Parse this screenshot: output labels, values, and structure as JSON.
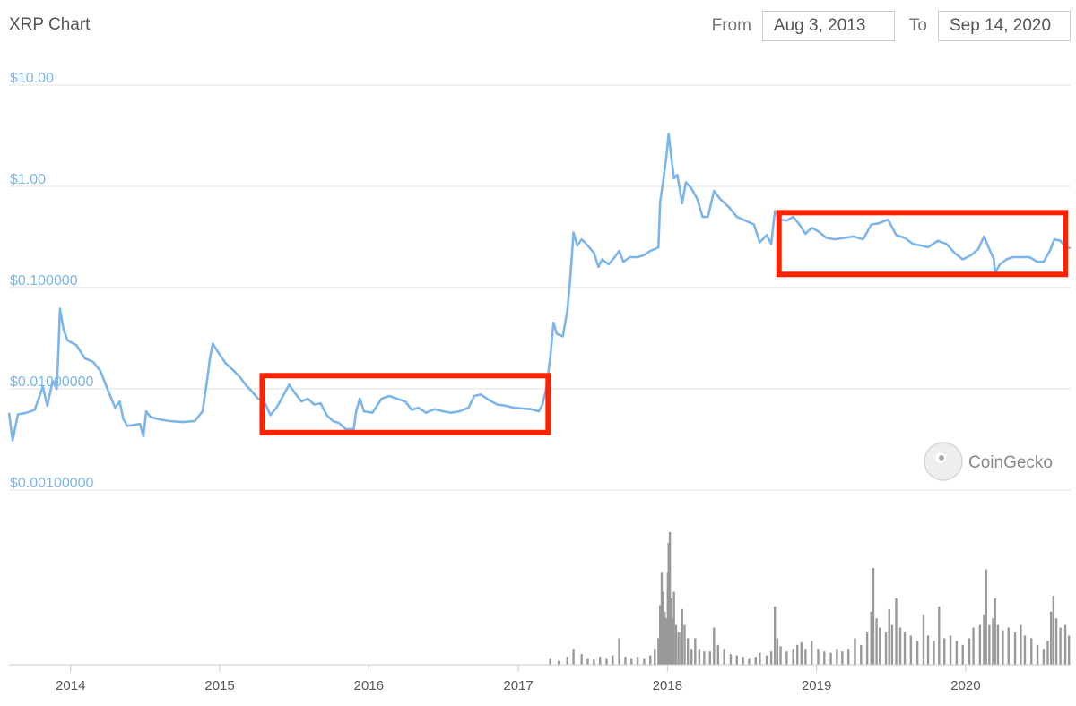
{
  "header": {
    "title": "XRP Chart",
    "from_label": "From",
    "from_value": "Aug 3, 2013",
    "to_label": "To",
    "to_value": "Sep 14, 2020"
  },
  "watermark": {
    "text": "CoinGecko"
  },
  "colors": {
    "price_line": "#7cb5ec",
    "volume_bars": "#999999",
    "highlight": "#ff2200",
    "grid": "#e0e0e0"
  },
  "chart_data": {
    "type": "line",
    "y_scale": "log",
    "x_range": [
      "2013-08-03",
      "2020-09-14"
    ],
    "y_range": [
      0.001,
      10
    ],
    "y_ticks": [
      {
        "value": 10,
        "label": "$10.00"
      },
      {
        "value": 1,
        "label": "$1.00"
      },
      {
        "value": 0.1,
        "label": "$0.100000"
      },
      {
        "value": 0.01,
        "label": "$0.01000000"
      },
      {
        "value": 0.001,
        "label": "$0.00100000"
      }
    ],
    "x_ticks": [
      "2014",
      "2015",
      "2016",
      "2017",
      "2018",
      "2019",
      "2020"
    ],
    "grid": true,
    "series": [
      {
        "points": [
          [
            "2013-08-03",
            0.0058
          ],
          [
            "2013-08-12",
            0.0031
          ],
          [
            "2013-08-25",
            0.0056
          ],
          [
            "2013-09-15",
            0.0058
          ],
          [
            "2013-10-05",
            0.0062
          ],
          [
            "2013-10-25",
            0.0105
          ],
          [
            "2013-11-05",
            0.0068
          ],
          [
            "2013-11-18",
            0.012
          ],
          [
            "2013-11-28",
            0.01
          ],
          [
            "2013-12-03",
            0.03
          ],
          [
            "2013-12-06",
            0.062
          ],
          [
            "2013-12-15",
            0.038
          ],
          [
            "2013-12-25",
            0.03
          ],
          [
            "2014-01-15",
            0.027
          ],
          [
            "2014-02-05",
            0.02
          ],
          [
            "2014-02-25",
            0.0185
          ],
          [
            "2014-03-15",
            0.015
          ],
          [
            "2014-04-01",
            0.01
          ],
          [
            "2014-04-20",
            0.0065
          ],
          [
            "2014-05-01",
            0.0075
          ],
          [
            "2014-05-10",
            0.005
          ],
          [
            "2014-05-20",
            0.0043
          ],
          [
            "2014-06-05",
            0.0044
          ],
          [
            "2014-06-20",
            0.0045
          ],
          [
            "2014-06-28",
            0.0034
          ],
          [
            "2014-07-05",
            0.006
          ],
          [
            "2014-07-15",
            0.0053
          ],
          [
            "2014-08-05",
            0.005
          ],
          [
            "2014-09-01",
            0.0048
          ],
          [
            "2014-10-01",
            0.0047
          ],
          [
            "2014-11-01",
            0.0048
          ],
          [
            "2014-11-20",
            0.006
          ],
          [
            "2014-12-01",
            0.012
          ],
          [
            "2014-12-08",
            0.02
          ],
          [
            "2014-12-15",
            0.028
          ],
          [
            "2014-12-25",
            0.024
          ],
          [
            "2015-01-15",
            0.018
          ],
          [
            "2015-02-05",
            0.015
          ],
          [
            "2015-02-20",
            0.013
          ],
          [
            "2015-03-05",
            0.011
          ],
          [
            "2015-03-20",
            0.0095
          ],
          [
            "2015-04-05",
            0.008
          ],
          [
            "2015-04-20",
            0.0075
          ],
          [
            "2015-05-05",
            0.0055
          ],
          [
            "2015-05-20",
            0.0065
          ],
          [
            "2015-06-05",
            0.0085
          ],
          [
            "2015-06-20",
            0.011
          ],
          [
            "2015-07-05",
            0.009
          ],
          [
            "2015-07-20",
            0.0075
          ],
          [
            "2015-08-05",
            0.008
          ],
          [
            "2015-08-20",
            0.007
          ],
          [
            "2015-09-05",
            0.0072
          ],
          [
            "2015-09-20",
            0.0055
          ],
          [
            "2015-10-05",
            0.0048
          ],
          [
            "2015-10-20",
            0.0046
          ],
          [
            "2015-11-05",
            0.004
          ],
          [
            "2015-11-25",
            0.004
          ],
          [
            "2015-12-01",
            0.006
          ],
          [
            "2015-12-10",
            0.008
          ],
          [
            "2015-12-20",
            0.006
          ],
          [
            "2016-01-10",
            0.0058
          ],
          [
            "2016-02-01",
            0.008
          ],
          [
            "2016-02-20",
            0.0085
          ],
          [
            "2016-03-10",
            0.008
          ],
          [
            "2016-03-30",
            0.0075
          ],
          [
            "2016-04-15",
            0.0062
          ],
          [
            "2016-05-01",
            0.0065
          ],
          [
            "2016-05-20",
            0.0058
          ],
          [
            "2016-06-10",
            0.0063
          ],
          [
            "2016-07-01",
            0.006
          ],
          [
            "2016-07-20",
            0.0058
          ],
          [
            "2016-08-10",
            0.006
          ],
          [
            "2016-09-01",
            0.0065
          ],
          [
            "2016-09-15",
            0.0085
          ],
          [
            "2016-10-01",
            0.0088
          ],
          [
            "2016-10-20",
            0.0078
          ],
          [
            "2016-11-10",
            0.007
          ],
          [
            "2016-12-01",
            0.0068
          ],
          [
            "2016-12-20",
            0.0065
          ],
          [
            "2017-01-10",
            0.0064
          ],
          [
            "2017-02-01",
            0.0063
          ],
          [
            "2017-02-20",
            0.006
          ],
          [
            "2017-03-01",
            0.007
          ],
          [
            "2017-03-10",
            0.01
          ],
          [
            "2017-03-20",
            0.02
          ],
          [
            "2017-03-28",
            0.045
          ],
          [
            "2017-04-05",
            0.035
          ],
          [
            "2017-04-20",
            0.033
          ],
          [
            "2017-05-01",
            0.06
          ],
          [
            "2017-05-08",
            0.12
          ],
          [
            "2017-05-16",
            0.35
          ],
          [
            "2017-05-25",
            0.26
          ],
          [
            "2017-06-05",
            0.3
          ],
          [
            "2017-06-20",
            0.26
          ],
          [
            "2017-07-05",
            0.22
          ],
          [
            "2017-07-16",
            0.16
          ],
          [
            "2017-07-25",
            0.19
          ],
          [
            "2017-08-10",
            0.17
          ],
          [
            "2017-08-25",
            0.2
          ],
          [
            "2017-09-05",
            0.23
          ],
          [
            "2017-09-15",
            0.18
          ],
          [
            "2017-10-01",
            0.2
          ],
          [
            "2017-10-20",
            0.2
          ],
          [
            "2017-11-05",
            0.21
          ],
          [
            "2017-11-20",
            0.23
          ],
          [
            "2017-12-01",
            0.24
          ],
          [
            "2017-12-10",
            0.25
          ],
          [
            "2017-12-14",
            0.7
          ],
          [
            "2017-12-21",
            1.1
          ],
          [
            "2017-12-29",
            1.9
          ],
          [
            "2018-01-04",
            3.3
          ],
          [
            "2018-01-10",
            2.0
          ],
          [
            "2018-01-17",
            1.2
          ],
          [
            "2018-01-25",
            1.3
          ],
          [
            "2018-02-06",
            0.68
          ],
          [
            "2018-02-15",
            1.1
          ],
          [
            "2018-03-01",
            0.95
          ],
          [
            "2018-03-15",
            0.75
          ],
          [
            "2018-03-28",
            0.5
          ],
          [
            "2018-04-10",
            0.5
          ],
          [
            "2018-04-25",
            0.9
          ],
          [
            "2018-05-10",
            0.75
          ],
          [
            "2018-06-01",
            0.62
          ],
          [
            "2018-06-20",
            0.5
          ],
          [
            "2018-07-10",
            0.46
          ],
          [
            "2018-08-01",
            0.42
          ],
          [
            "2018-08-15",
            0.28
          ],
          [
            "2018-09-01",
            0.33
          ],
          [
            "2018-09-12",
            0.27
          ],
          [
            "2018-09-21",
            0.57
          ],
          [
            "2018-10-05",
            0.47
          ],
          [
            "2018-10-20",
            0.46
          ],
          [
            "2018-11-05",
            0.5
          ],
          [
            "2018-11-20",
            0.42
          ],
          [
            "2018-12-05",
            0.34
          ],
          [
            "2018-12-20",
            0.39
          ],
          [
            "2019-01-05",
            0.36
          ],
          [
            "2019-01-25",
            0.31
          ],
          [
            "2019-02-15",
            0.3
          ],
          [
            "2019-03-10",
            0.31
          ],
          [
            "2019-04-01",
            0.32
          ],
          [
            "2019-04-25",
            0.3
          ],
          [
            "2019-05-15",
            0.42
          ],
          [
            "2019-06-01",
            0.43
          ],
          [
            "2019-06-25",
            0.47
          ],
          [
            "2019-07-15",
            0.33
          ],
          [
            "2019-08-05",
            0.31
          ],
          [
            "2019-08-25",
            0.27
          ],
          [
            "2019-09-15",
            0.26
          ],
          [
            "2019-10-01",
            0.25
          ],
          [
            "2019-10-25",
            0.29
          ],
          [
            "2019-11-15",
            0.27
          ],
          [
            "2019-12-05",
            0.22
          ],
          [
            "2019-12-25",
            0.19
          ],
          [
            "2020-01-15",
            0.21
          ],
          [
            "2020-02-01",
            0.24
          ],
          [
            "2020-02-15",
            0.32
          ],
          [
            "2020-02-28",
            0.24
          ],
          [
            "2020-03-10",
            0.19
          ],
          [
            "2020-03-13",
            0.14
          ],
          [
            "2020-03-25",
            0.17
          ],
          [
            "2020-04-10",
            0.19
          ],
          [
            "2020-04-25",
            0.2
          ],
          [
            "2020-05-15",
            0.2
          ],
          [
            "2020-06-05",
            0.2
          ],
          [
            "2020-06-25",
            0.18
          ],
          [
            "2020-07-10",
            0.18
          ],
          [
            "2020-07-25",
            0.23
          ],
          [
            "2020-08-05",
            0.3
          ],
          [
            "2020-08-20",
            0.29
          ],
          [
            "2020-09-01",
            0.25
          ],
          [
            "2020-09-14",
            0.245
          ]
        ]
      }
    ],
    "volume_series": [
      [
        "2017-03-20",
        0.05
      ],
      [
        "2017-04-10",
        0.03
      ],
      [
        "2017-05-01",
        0.06
      ],
      [
        "2017-05-16",
        0.12
      ],
      [
        "2017-06-05",
        0.08
      ],
      [
        "2017-06-20",
        0.05
      ],
      [
        "2017-07-05",
        0.04
      ],
      [
        "2017-07-20",
        0.06
      ],
      [
        "2017-08-05",
        0.05
      ],
      [
        "2017-08-20",
        0.07
      ],
      [
        "2017-09-05",
        0.2
      ],
      [
        "2017-09-20",
        0.06
      ],
      [
        "2017-10-05",
        0.05
      ],
      [
        "2017-10-20",
        0.06
      ],
      [
        "2017-11-05",
        0.05
      ],
      [
        "2017-11-20",
        0.07
      ],
      [
        "2017-12-01",
        0.12
      ],
      [
        "2017-12-10",
        0.2
      ],
      [
        "2017-12-14",
        0.45
      ],
      [
        "2017-12-18",
        0.7
      ],
      [
        "2017-12-21",
        0.55
      ],
      [
        "2017-12-25",
        0.4
      ],
      [
        "2017-12-29",
        0.35
      ],
      [
        "2018-01-02",
        0.7
      ],
      [
        "2018-01-04",
        0.92
      ],
      [
        "2018-01-07",
        1.0
      ],
      [
        "2018-01-10",
        0.5
      ],
      [
        "2018-01-13",
        0.35
      ],
      [
        "2018-01-17",
        0.55
      ],
      [
        "2018-01-22",
        0.3
      ],
      [
        "2018-01-28",
        0.25
      ],
      [
        "2018-02-03",
        0.25
      ],
      [
        "2018-02-06",
        0.42
      ],
      [
        "2018-02-12",
        0.3
      ],
      [
        "2018-02-20",
        0.2
      ],
      [
        "2018-03-01",
        0.12
      ],
      [
        "2018-03-10",
        0.2
      ],
      [
        "2018-03-20",
        0.12
      ],
      [
        "2018-04-01",
        0.1
      ],
      [
        "2018-04-15",
        0.1
      ],
      [
        "2018-04-25",
        0.28
      ],
      [
        "2018-05-05",
        0.15
      ],
      [
        "2018-05-20",
        0.12
      ],
      [
        "2018-06-05",
        0.08
      ],
      [
        "2018-06-20",
        0.07
      ],
      [
        "2018-07-05",
        0.06
      ],
      [
        "2018-07-20",
        0.05
      ],
      [
        "2018-08-05",
        0.06
      ],
      [
        "2018-08-15",
        0.09
      ],
      [
        "2018-09-01",
        0.07
      ],
      [
        "2018-09-12",
        0.1
      ],
      [
        "2018-09-21",
        0.44
      ],
      [
        "2018-09-27",
        0.2
      ],
      [
        "2018-10-05",
        0.14
      ],
      [
        "2018-10-20",
        0.1
      ],
      [
        "2018-11-05",
        0.12
      ],
      [
        "2018-11-15",
        0.15
      ],
      [
        "2018-11-25",
        0.17
      ],
      [
        "2018-12-05",
        0.12
      ],
      [
        "2018-12-20",
        0.18
      ],
      [
        "2019-01-05",
        0.12
      ],
      [
        "2019-01-20",
        0.1
      ],
      [
        "2019-02-05",
        0.09
      ],
      [
        "2019-02-20",
        0.12
      ],
      [
        "2019-03-05",
        0.1
      ],
      [
        "2019-03-20",
        0.12
      ],
      [
        "2019-04-05",
        0.2
      ],
      [
        "2019-04-20",
        0.15
      ],
      [
        "2019-05-05",
        0.25
      ],
      [
        "2019-05-15",
        0.4
      ],
      [
        "2019-05-20",
        0.73
      ],
      [
        "2019-05-28",
        0.35
      ],
      [
        "2019-06-05",
        0.28
      ],
      [
        "2019-06-20",
        0.25
      ],
      [
        "2019-06-28",
        0.42
      ],
      [
        "2019-07-05",
        0.3
      ],
      [
        "2019-07-15",
        0.5
      ],
      [
        "2019-07-25",
        0.28
      ],
      [
        "2019-08-05",
        0.25
      ],
      [
        "2019-08-20",
        0.22
      ],
      [
        "2019-09-05",
        0.18
      ],
      [
        "2019-09-20",
        0.38
      ],
      [
        "2019-10-01",
        0.22
      ],
      [
        "2019-10-15",
        0.18
      ],
      [
        "2019-10-28",
        0.44
      ],
      [
        "2019-11-10",
        0.2
      ],
      [
        "2019-11-25",
        0.22
      ],
      [
        "2019-12-10",
        0.18
      ],
      [
        "2019-12-25",
        0.15
      ],
      [
        "2020-01-10",
        0.2
      ],
      [
        "2020-01-20",
        0.28
      ],
      [
        "2020-02-05",
        0.3
      ],
      [
        "2020-02-15",
        0.38
      ],
      [
        "2020-02-20",
        0.72
      ],
      [
        "2020-02-28",
        0.3
      ],
      [
        "2020-03-08",
        0.35
      ],
      [
        "2020-03-13",
        0.5
      ],
      [
        "2020-03-20",
        0.3
      ],
      [
        "2020-04-01",
        0.26
      ],
      [
        "2020-04-15",
        0.28
      ],
      [
        "2020-05-01",
        0.25
      ],
      [
        "2020-05-15",
        0.3
      ],
      [
        "2020-05-25",
        0.22
      ],
      [
        "2020-06-10",
        0.2
      ],
      [
        "2020-06-25",
        0.15
      ],
      [
        "2020-07-10",
        0.12
      ],
      [
        "2020-07-20",
        0.18
      ],
      [
        "2020-07-28",
        0.4
      ],
      [
        "2020-08-03",
        0.52
      ],
      [
        "2020-08-10",
        0.35
      ],
      [
        "2020-08-20",
        0.28
      ],
      [
        "2020-09-01",
        0.3
      ],
      [
        "2020-09-10",
        0.22
      ]
    ],
    "highlights": [
      {
        "x_range": [
          "2015-04-15",
          "2017-03-15"
        ],
        "y_range": [
          0.0037,
          0.0135
        ]
      },
      {
        "x_range": [
          "2018-10-01",
          "2020-09-01"
        ],
        "y_range": [
          0.135,
          0.55
        ]
      }
    ]
  }
}
